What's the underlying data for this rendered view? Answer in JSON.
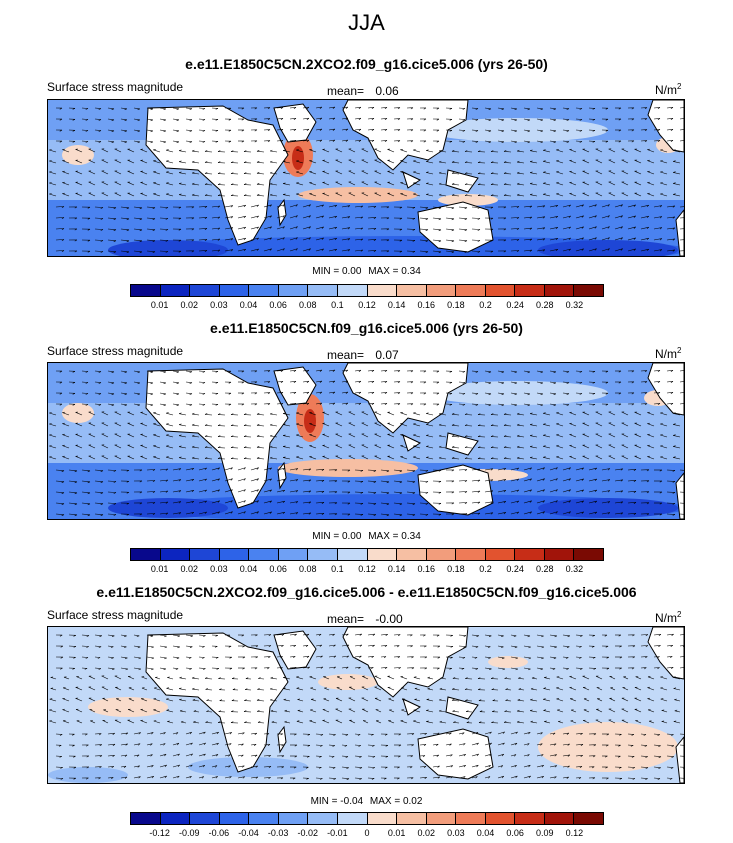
{
  "title": "JJA",
  "panels": [
    {
      "title": "e.e11.E1850C5CN.2XCO2.f09_g16.cice5.006 (yrs 26-50)",
      "left_label": "Surface stress magnitude",
      "mean_label": "mean=",
      "mean_value": "0.06",
      "units": "N/m",
      "units_sup": "2",
      "min_label": "MIN =",
      "min_value": "0.00",
      "max_label": "MAX =",
      "max_value": "0.34",
      "colorbar": {
        "ticks": [
          "0.01",
          "0.02",
          "0.03",
          "0.04",
          "0.06",
          "0.08",
          "0.1",
          "0.12",
          "0.14",
          "0.16",
          "0.18",
          "0.2",
          "0.24",
          "0.28",
          "0.32"
        ],
        "colors": [
          "#08088c",
          "#0c25c0",
          "#1e46d6",
          "#2d63e8",
          "#4a82f0",
          "#6fa0f4",
          "#96bcf6",
          "#c2d9f8",
          "#f9dccb",
          "#f6bfa3",
          "#f29d7c",
          "#ee7b58",
          "#e2532f",
          "#c72d17",
          "#a1140a",
          "#7a0a03"
        ]
      },
      "chart_data": {
        "type": "heatmap",
        "variable": "Surface stress magnitude",
        "season": "JJA",
        "units": "N/m2",
        "mean": 0.06,
        "min": 0.0,
        "max": 0.34
      }
    },
    {
      "title": "e.e11.E1850C5CN.f09_g16.cice5.006 (yrs 26-50)",
      "left_label": "Surface stress magnitude",
      "mean_label": "mean=",
      "mean_value": "0.07",
      "units": "N/m",
      "units_sup": "2",
      "min_label": "MIN =",
      "min_value": "0.00",
      "max_label": "MAX =",
      "max_value": "0.34",
      "colorbar": {
        "ticks": [
          "0.01",
          "0.02",
          "0.03",
          "0.04",
          "0.06",
          "0.08",
          "0.1",
          "0.12",
          "0.14",
          "0.16",
          "0.18",
          "0.2",
          "0.24",
          "0.28",
          "0.32"
        ],
        "colors": [
          "#08088c",
          "#0c25c0",
          "#1e46d6",
          "#2d63e8",
          "#4a82f0",
          "#6fa0f4",
          "#96bcf6",
          "#c2d9f8",
          "#f9dccb",
          "#f6bfa3",
          "#f29d7c",
          "#ee7b58",
          "#e2532f",
          "#c72d17",
          "#a1140a",
          "#7a0a03"
        ]
      },
      "chart_data": {
        "type": "heatmap",
        "variable": "Surface stress magnitude",
        "season": "JJA",
        "units": "N/m2",
        "mean": 0.07,
        "min": 0.0,
        "max": 0.34
      }
    },
    {
      "title": "e.e11.E1850C5CN.2XCO2.f09_g16.cice5.006 - e.e11.E1850C5CN.f09_g16.cice5.006",
      "left_label": "Surface stress magnitude",
      "mean_label": "mean=",
      "mean_value": "-0.00",
      "units": "N/m",
      "units_sup": "2",
      "min_label": "MIN =",
      "min_value": "-0.04",
      "max_label": "MAX =",
      "max_value": "0.02",
      "colorbar": {
        "ticks": [
          "-0.12",
          "-0.09",
          "-0.06",
          "-0.04",
          "-0.03",
          "-0.02",
          "-0.01",
          "0",
          "0.01",
          "0.02",
          "0.03",
          "0.04",
          "0.06",
          "0.09",
          "0.12"
        ],
        "colors": [
          "#08088c",
          "#0c25c0",
          "#1e46d6",
          "#2d63e8",
          "#4a82f0",
          "#6fa0f4",
          "#96bcf6",
          "#c2d9f8",
          "#f9dccb",
          "#f6bfa3",
          "#f29d7c",
          "#ee7b58",
          "#e2532f",
          "#c72d17",
          "#a1140a",
          "#7a0a03"
        ]
      },
      "chart_data": {
        "type": "heatmap",
        "variable": "Surface stress magnitude (difference)",
        "season": "JJA",
        "units": "N/m2",
        "mean": -0.0,
        "min": -0.04,
        "max": 0.02
      }
    }
  ]
}
